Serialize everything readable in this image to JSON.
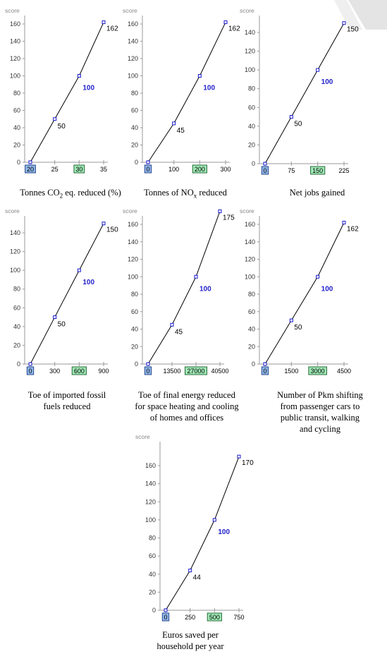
{
  "chart_data": [
    {
      "type": "line",
      "ylabel": "score",
      "ylim": [
        0,
        160
      ],
      "yticks": [
        0,
        20,
        40,
        60,
        80,
        100,
        120,
        140,
        160
      ],
      "xlim": [
        20,
        35
      ],
      "xticks": [
        20,
        25,
        30,
        35
      ],
      "xtick_labels": [
        "20",
        "25",
        "30",
        "35"
      ],
      "highlight_ref": "20",
      "highlight_target": "30",
      "x": [
        20,
        25,
        30,
        35
      ],
      "y": [
        0,
        50,
        100,
        162
      ],
      "labels": [
        "",
        "50",
        "100",
        "162"
      ],
      "caption_pre": "Tonnes CO",
      "caption_sub": "2",
      "caption_post": " eq. reduced (%)"
    },
    {
      "type": "line",
      "ylabel": "score",
      "ylim": [
        0,
        160
      ],
      "yticks": [
        0,
        20,
        40,
        60,
        80,
        100,
        120,
        140,
        160
      ],
      "xlim": [
        0,
        300
      ],
      "xticks": [
        0,
        100,
        200,
        300
      ],
      "xtick_labels": [
        "0",
        "100",
        "200",
        "300"
      ],
      "highlight_ref": "0",
      "highlight_target": "200",
      "x": [
        0,
        100,
        200,
        300
      ],
      "y": [
        0,
        45,
        100,
        162
      ],
      "labels": [
        "",
        "45",
        "100",
        "162"
      ],
      "caption_pre": "Tonnes of NO",
      "caption_sub": "x",
      "caption_post": " reduced"
    },
    {
      "type": "line",
      "ylabel": "score",
      "ylim": [
        0,
        140
      ],
      "yticks": [
        0,
        20,
        40,
        60,
        80,
        100,
        120,
        140
      ],
      "xlim": [
        0,
        225
      ],
      "xticks": [
        0,
        75,
        150,
        225
      ],
      "xtick_labels": [
        "0",
        "75",
        "150",
        "225"
      ],
      "highlight_ref": "0",
      "highlight_target": "150",
      "x": [
        0,
        75,
        150,
        225
      ],
      "y": [
        0,
        50,
        100,
        150
      ],
      "labels": [
        "",
        "50",
        "100",
        "150"
      ],
      "caption_pre": "Net jobs gained",
      "caption_sub": "",
      "caption_post": ""
    },
    {
      "type": "line",
      "ylabel": "score",
      "ylim": [
        0,
        140
      ],
      "yticks": [
        0,
        20,
        40,
        60,
        80,
        100,
        120,
        140
      ],
      "xlim": [
        0,
        900
      ],
      "xticks": [
        0,
        300,
        600,
        900
      ],
      "xtick_labels": [
        "0",
        "300",
        "600",
        "900"
      ],
      "highlight_ref": "0",
      "highlight_target": "600",
      "x": [
        0,
        300,
        600,
        900
      ],
      "y": [
        0,
        50,
        100,
        150
      ],
      "labels": [
        "",
        "50",
        "100",
        "150"
      ],
      "caption_lines": [
        "Toe of imported fossil",
        "fuels reduced"
      ]
    },
    {
      "type": "line",
      "ylabel": "score",
      "ylim": [
        0,
        160
      ],
      "yticks": [
        0,
        20,
        40,
        60,
        80,
        100,
        120,
        140,
        160
      ],
      "xlim": [
        0,
        40500
      ],
      "xticks": [
        0,
        13500,
        27000,
        40500
      ],
      "xtick_labels": [
        "0",
        "13500",
        "27000",
        "40500"
      ],
      "highlight_ref": "0",
      "highlight_target": "27000",
      "x": [
        0,
        13500,
        27000,
        40500
      ],
      "y": [
        0,
        45,
        100,
        175
      ],
      "labels": [
        "",
        "45",
        "100",
        "175"
      ],
      "caption_lines": [
        "Toe of final energy reduced",
        "for space heating and cooling",
        "of homes and offices"
      ]
    },
    {
      "type": "line",
      "ylabel": "score",
      "ylim": [
        0,
        160
      ],
      "yticks": [
        0,
        20,
        40,
        60,
        80,
        100,
        120,
        140,
        160
      ],
      "xlim": [
        0,
        4500
      ],
      "xticks": [
        0,
        1500,
        3000,
        4500
      ],
      "xtick_labels": [
        "0",
        "1500",
        "3000",
        "4500"
      ],
      "highlight_ref": "0",
      "highlight_target": "3000",
      "x": [
        0,
        1500,
        3000,
        4500
      ],
      "y": [
        0,
        50,
        100,
        162
      ],
      "labels": [
        "",
        "50",
        "100",
        "162"
      ],
      "caption_lines": [
        "Number of Pkm shifting",
        "from passenger cars to",
        "public transit, walking",
        "and cycling"
      ]
    },
    {
      "type": "line",
      "ylabel": "score",
      "ylim": [
        0,
        160
      ],
      "yticks": [
        0,
        20,
        40,
        60,
        80,
        100,
        120,
        140,
        160
      ],
      "xlim": [
        0,
        750
      ],
      "xticks": [
        0,
        250,
        500,
        750
      ],
      "xtick_labels": [
        "0",
        "250",
        "500",
        "750"
      ],
      "highlight_ref": "0",
      "highlight_target": "500",
      "x": [
        0,
        250,
        500,
        750
      ],
      "y": [
        0,
        44,
        100,
        170
      ],
      "labels": [
        "",
        "44",
        "100",
        "170"
      ],
      "caption_lines": [
        "Euros saved per",
        "household per year"
      ]
    }
  ]
}
